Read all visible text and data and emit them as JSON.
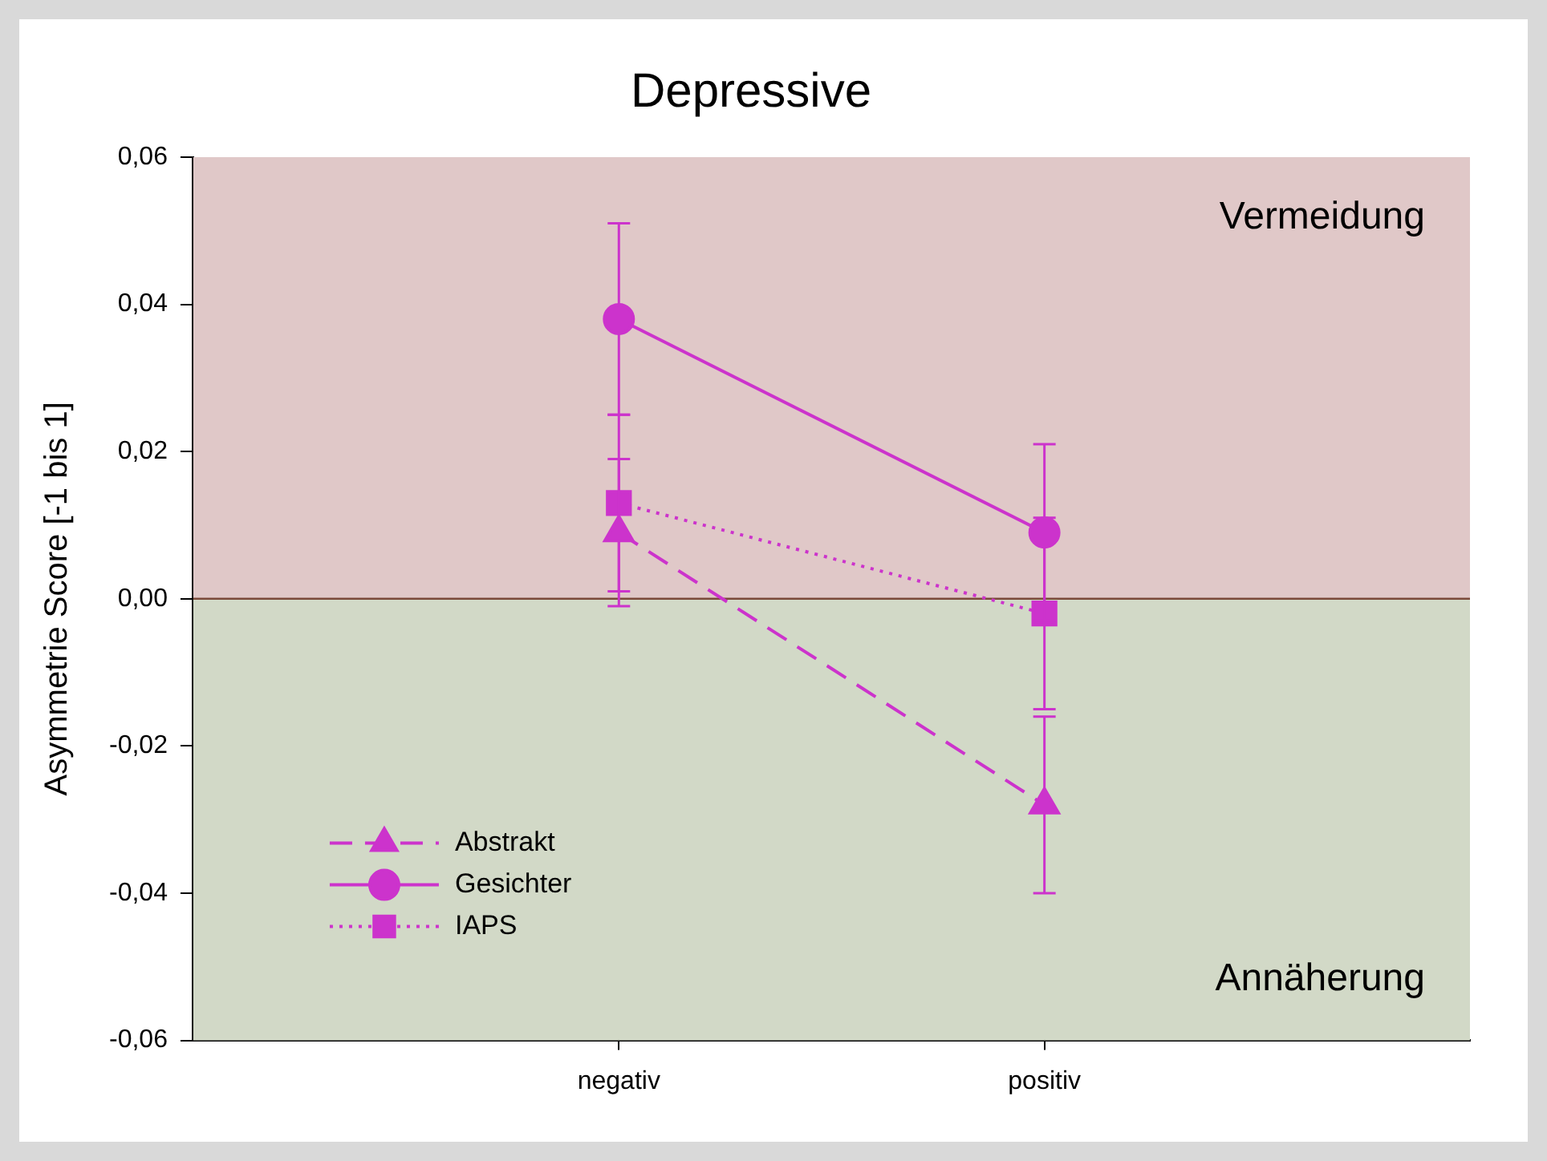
{
  "chart_data": {
    "type": "line",
    "title": "Depressive",
    "ylabel": "Asymmetrie Score [-1 bis 1]",
    "categories": [
      "negativ",
      "positiv"
    ],
    "series": [
      {
        "name": "Abstrakt",
        "color": "#cc33cc",
        "values": [
          0.009,
          -0.028
        ],
        "errors": [
          0.01,
          0.012
        ],
        "marker": "triangle",
        "line_style": "dashed"
      },
      {
        "name": "Gesichter",
        "color": "#cc33cc",
        "values": [
          0.038,
          0.009
        ],
        "errors": [
          0.013,
          0.012
        ],
        "marker": "circle",
        "line_style": "solid"
      },
      {
        "name": "IAPS",
        "color": "#cc33cc",
        "values": [
          0.013,
          -0.002
        ],
        "errors": [
          0.012,
          0.013
        ],
        "marker": "square",
        "line_style": "dotted"
      }
    ],
    "ylim": [
      -0.06,
      0.06
    ],
    "yticks": [
      {
        "value": -0.06,
        "label": "-0,06"
      },
      {
        "value": -0.04,
        "label": "-0,04"
      },
      {
        "value": -0.02,
        "label": "-0,02"
      },
      {
        "value": 0,
        "label": "0,00"
      },
      {
        "value": 0.02,
        "label": "0,02"
      },
      {
        "value": 0.04,
        "label": "0,04"
      },
      {
        "value": 0.06,
        "label": "0,06"
      }
    ],
    "bands": [
      {
        "axis": "y",
        "from": 0,
        "to": 0.06,
        "label": "Vermeidung",
        "color": "#e0c8c8"
      },
      {
        "axis": "y",
        "from": -0.06,
        "to": 0,
        "label": "Annäherung",
        "color": "#d2d9c7"
      }
    ],
    "ref_lines": [
      {
        "axis": "y",
        "value": 0,
        "color": "#7a4a3a"
      }
    ],
    "legend": "bottom left",
    "grid": false
  }
}
